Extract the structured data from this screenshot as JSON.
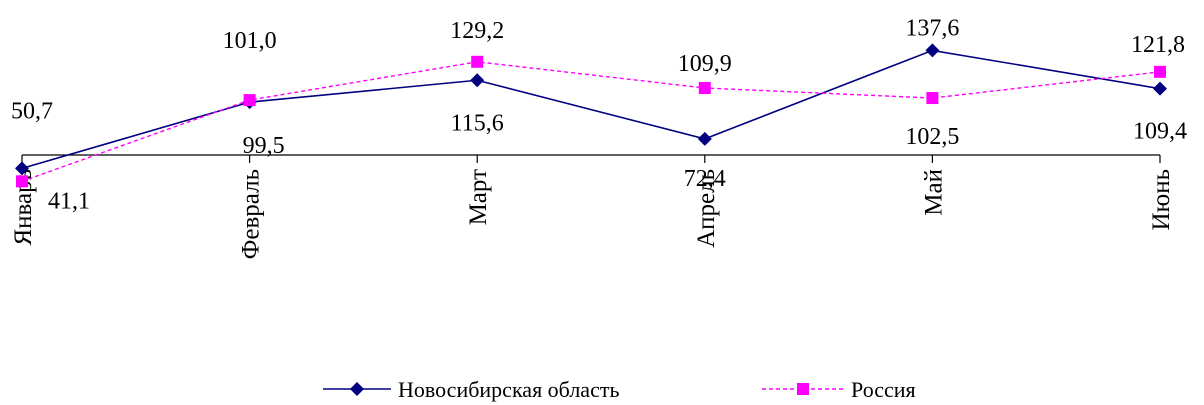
{
  "chart_data": {
    "type": "line",
    "title": "",
    "xlabel": "",
    "ylabel": "",
    "categories": [
      "Январь",
      "Февраль",
      "Март",
      "Апрель",
      "Май",
      "Июнь"
    ],
    "ylim": [
      20,
      160
    ],
    "grid": false,
    "legend_position": "bottom",
    "series": [
      {
        "name": "Новосибирская область",
        "values": [
          50.7,
          99.5,
          115.6,
          72.4,
          137.6,
          109.4
        ],
        "labels": [
          "50,7",
          "99,5",
          "115,6",
          "72,4",
          "137,6",
          "109,4"
        ],
        "color": "#000080",
        "marker": "diamond",
        "dash": "solid"
      },
      {
        "name": "Россия",
        "values": [
          41.1,
          101.0,
          129.2,
          109.9,
          102.5,
          121.8
        ],
        "labels": [
          "41,1",
          "101,0",
          "129,2",
          "109,9",
          "102,5",
          "121,8"
        ],
        "color": "#ff00ff",
        "marker": "square",
        "dash": "dashed"
      }
    ]
  }
}
